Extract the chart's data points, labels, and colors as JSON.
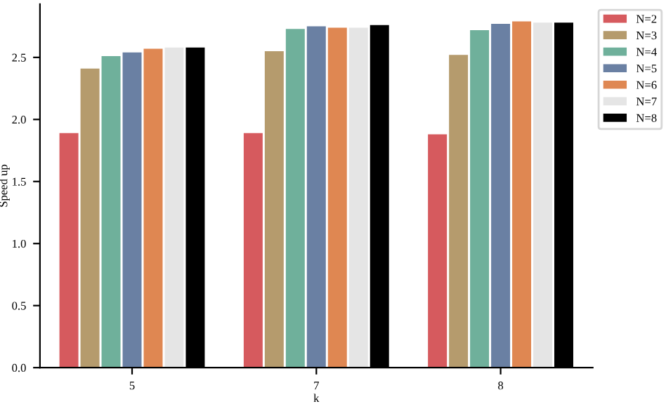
{
  "chart_data": {
    "type": "bar",
    "xlabel": "k",
    "ylabel": "Speed up",
    "categories": [
      "5",
      "7",
      "8"
    ],
    "series": [
      {
        "name": "N=2",
        "color": "#d65a5e",
        "values": [
          1.89,
          1.89,
          1.88
        ]
      },
      {
        "name": "N=3",
        "color": "#b59b6d",
        "values": [
          2.41,
          2.55,
          2.52
        ]
      },
      {
        "name": "N=4",
        "color": "#6fb09b",
        "values": [
          2.51,
          2.73,
          2.72
        ]
      },
      {
        "name": "N=5",
        "color": "#6a80a3",
        "values": [
          2.54,
          2.75,
          2.77
        ]
      },
      {
        "name": "N=6",
        "color": "#df8752",
        "values": [
          2.57,
          2.74,
          2.79
        ]
      },
      {
        "name": "N=7",
        "color": "#e5e5e5",
        "values": [
          2.58,
          2.74,
          2.78
        ]
      },
      {
        "name": "N=8",
        "color": "#000000",
        "values": [
          2.58,
          2.76,
          2.78
        ]
      }
    ],
    "ylim": [
      0,
      2.93
    ],
    "yticks": [
      {
        "value": 0,
        "label": "0.0"
      },
      {
        "value": 0.5,
        "label": "0.5"
      },
      {
        "value": 1,
        "label": "1.0"
      },
      {
        "value": 1.5,
        "label": "1.5"
      },
      {
        "value": 2,
        "label": "2.0"
      },
      {
        "value": 2.5,
        "label": "2.5"
      }
    ],
    "legend": "top right",
    "grid": false
  }
}
